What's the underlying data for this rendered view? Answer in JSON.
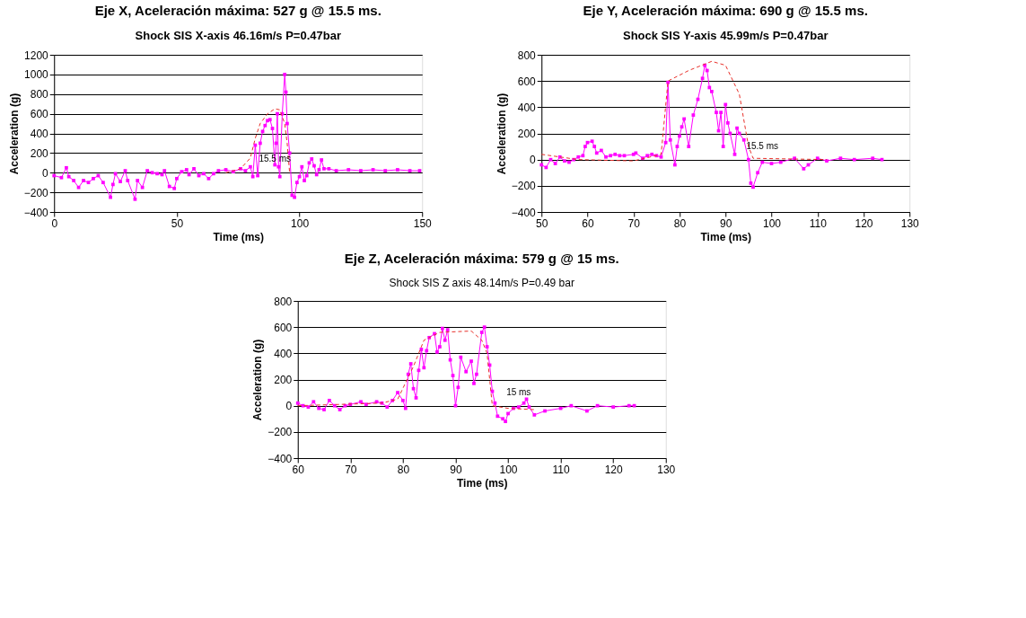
{
  "chart_data": [
    {
      "type": "line",
      "title": "Eje X, Aceleración máxima: 527 g @ 15.5  ms.",
      "subtitle": "Shock SIS X-axis 46.16m/s P=0.47bar",
      "xlabel": "Time (ms)",
      "ylabel": "Acceleration (g)",
      "xlim": [
        0,
        150
      ],
      "xticks": [
        0,
        50,
        100,
        150
      ],
      "ylim": [
        -400,
        1200
      ],
      "yticks": [
        -400,
        -200,
        0,
        200,
        400,
        600,
        800,
        1000,
        1200
      ],
      "grid": "y",
      "series": [
        {
          "color": "#ff00ff",
          "marker": "square",
          "line_style": "solid",
          "x": [
            0,
            3,
            5,
            6,
            8,
            10,
            12,
            14,
            16,
            18,
            20,
            23,
            24,
            25,
            27,
            29,
            30,
            33,
            34,
            36,
            38,
            40,
            42,
            44,
            45,
            47,
            49,
            50,
            52,
            54,
            55,
            57,
            59,
            61,
            63,
            65,
            67,
            70,
            73,
            76,
            78,
            80,
            81,
            82,
            83,
            84,
            85,
            86,
            87,
            88,
            89,
            90,
            90.5,
            91,
            91.5,
            92,
            93,
            94,
            94.5,
            95,
            96,
            97,
            98,
            99,
            100,
            101,
            102,
            103,
            104,
            105,
            106,
            107,
            108,
            109,
            110,
            112,
            115,
            120,
            125,
            130,
            135,
            140,
            145,
            149
          ],
          "values": [
            -30,
            -50,
            50,
            -40,
            -80,
            -150,
            -80,
            -100,
            -60,
            -30,
            -100,
            -250,
            -120,
            -10,
            -90,
            20,
            -80,
            -270,
            -80,
            -150,
            20,
            0,
            -10,
            -20,
            20,
            -140,
            -160,
            -60,
            10,
            30,
            -20,
            40,
            -30,
            -10,
            -60,
            -10,
            20,
            30,
            10,
            40,
            20,
            60,
            -40,
            280,
            -30,
            300,
            420,
            480,
            530,
            540,
            450,
            80,
            300,
            600,
            60,
            -40,
            600,
            1000,
            820,
            500,
            200,
            -230,
            -250,
            -100,
            -40,
            60,
            -80,
            -30,
            100,
            140,
            70,
            -20,
            30,
            130,
            40,
            40,
            20,
            30,
            20,
            30,
            20,
            30,
            20,
            20
          ]
        },
        {
          "color": "#e8302a",
          "marker": "none",
          "line_style": "dashed",
          "x": [
            70,
            76,
            80,
            82,
            84,
            87,
            90,
            92,
            94,
            95,
            96
          ],
          "values": [
            0,
            40,
            150,
            350,
            500,
            600,
            650,
            640,
            500,
            300,
            0
          ]
        }
      ],
      "annotations": [
        "15.5 ms"
      ]
    },
    {
      "type": "line",
      "title": "Eje Y, Aceleración máxima: 690 g @ 15.5 ms.",
      "subtitle": "Shock SIS Y-axis 45.99m/s P=0.47bar",
      "xlabel": "Time (ms)",
      "ylabel": "Acceleration (g)",
      "xlim": [
        50,
        130
      ],
      "xticks": [
        50,
        60,
        70,
        80,
        90,
        100,
        110,
        120,
        130
      ],
      "ylim": [
        -400,
        800
      ],
      "yticks": [
        -400,
        -200,
        0,
        200,
        400,
        600,
        800
      ],
      "grid": "y",
      "series": [
        {
          "color": "#ff00ff",
          "marker": "square",
          "line_style": "solid",
          "x": [
            50,
            51,
            52,
            53,
            54,
            55,
            56,
            57,
            58,
            59,
            59.5,
            60,
            61,
            61.5,
            62,
            63,
            64,
            65,
            66,
            67,
            68,
            70,
            70.5,
            72,
            73,
            74,
            75,
            76,
            77,
            77.5,
            78,
            79,
            79.5,
            80,
            80.5,
            81,
            82,
            83,
            84,
            85,
            85.5,
            86,
            86.5,
            87,
            88,
            88.5,
            89,
            89.5,
            90,
            90.5,
            91,
            92,
            92.5,
            93,
            94,
            95,
            95.5,
            96,
            97,
            98,
            100,
            102,
            105,
            107,
            108,
            110,
            112,
            115,
            118,
            122,
            124
          ],
          "values": [
            -40,
            -60,
            0,
            -30,
            20,
            -10,
            -20,
            0,
            20,
            30,
            100,
            130,
            140,
            100,
            50,
            70,
            20,
            30,
            40,
            30,
            30,
            40,
            50,
            10,
            30,
            40,
            30,
            20,
            130,
            590,
            150,
            -40,
            100,
            180,
            250,
            310,
            100,
            340,
            460,
            620,
            720,
            680,
            550,
            520,
            360,
            220,
            360,
            100,
            420,
            280,
            200,
            40,
            240,
            200,
            150,
            0,
            -180,
            -210,
            -100,
            -20,
            -30,
            -20,
            10,
            -70,
            -40,
            10,
            -10,
            10,
            0,
            10,
            0
          ]
        },
        {
          "color": "#e8302a",
          "marker": "none",
          "line_style": "dashed",
          "x": [
            50,
            58,
            70,
            76,
            77.5,
            82,
            87,
            90,
            93,
            95,
            96,
            112
          ],
          "values": [
            40,
            0,
            -10,
            40,
            600,
            680,
            750,
            720,
            500,
            100,
            10,
            0
          ]
        }
      ],
      "annotations": [
        "15.5 ms"
      ]
    },
    {
      "type": "line",
      "title": "Eje Z, Aceleración máxima: 579 g @ 15 ms.",
      "subtitle": "Shock SIS Z axis 48.14m/s P=0.49 bar",
      "xlabel": "Time (ms)",
      "ylabel": "Acceleration (g)",
      "xlim": [
        60,
        130
      ],
      "xticks": [
        60,
        70,
        80,
        90,
        100,
        110,
        120,
        130
      ],
      "ylim": [
        -400,
        800
      ],
      "yticks": [
        -400,
        -200,
        0,
        200,
        400,
        600,
        800
      ],
      "grid": "y",
      "series": [
        {
          "color": "#ff00ff",
          "marker": "square",
          "line_style": "solid",
          "x": [
            60,
            61,
            62,
            63,
            64,
            65,
            66,
            67,
            68,
            69,
            70,
            72,
            73,
            75,
            76,
            77,
            78,
            79,
            80,
            80.5,
            81,
            81.5,
            82,
            82.5,
            83,
            83.5,
            84,
            84.5,
            85,
            86,
            86.5,
            87,
            87.5,
            88,
            88.5,
            89,
            89.5,
            90,
            90.5,
            91,
            92,
            93,
            93.5,
            94,
            95,
            95.5,
            96,
            96.5,
            97,
            97.5,
            98,
            99,
            99.5,
            100,
            101,
            102,
            103,
            103.5,
            104,
            105,
            107,
            110,
            112,
            115,
            117,
            120,
            123,
            124
          ],
          "values": [
            20,
            0,
            -10,
            30,
            -20,
            -30,
            40,
            0,
            -30,
            0,
            10,
            30,
            10,
            30,
            20,
            -10,
            40,
            100,
            40,
            -20,
            240,
            320,
            130,
            60,
            270,
            430,
            290,
            420,
            520,
            550,
            410,
            450,
            590,
            500,
            580,
            350,
            230,
            0,
            140,
            370,
            260,
            340,
            170,
            240,
            560,
            600,
            450,
            310,
            110,
            20,
            -80,
            -100,
            -120,
            -60,
            -20,
            -10,
            20,
            50,
            -10,
            -70,
            -40,
            -20,
            0,
            -40,
            0,
            -10,
            0,
            0
          ]
        },
        {
          "color": "#e8302a",
          "marker": "none",
          "line_style": "dashed",
          "x": [
            60,
            76,
            79,
            82,
            84,
            87,
            93,
            95,
            96,
            97,
            100,
            105
          ],
          "values": [
            0,
            20,
            50,
            300,
            500,
            560,
            570,
            500,
            400,
            0,
            -20,
            -30
          ]
        }
      ],
      "annotations": [
        "15 ms"
      ]
    }
  ]
}
